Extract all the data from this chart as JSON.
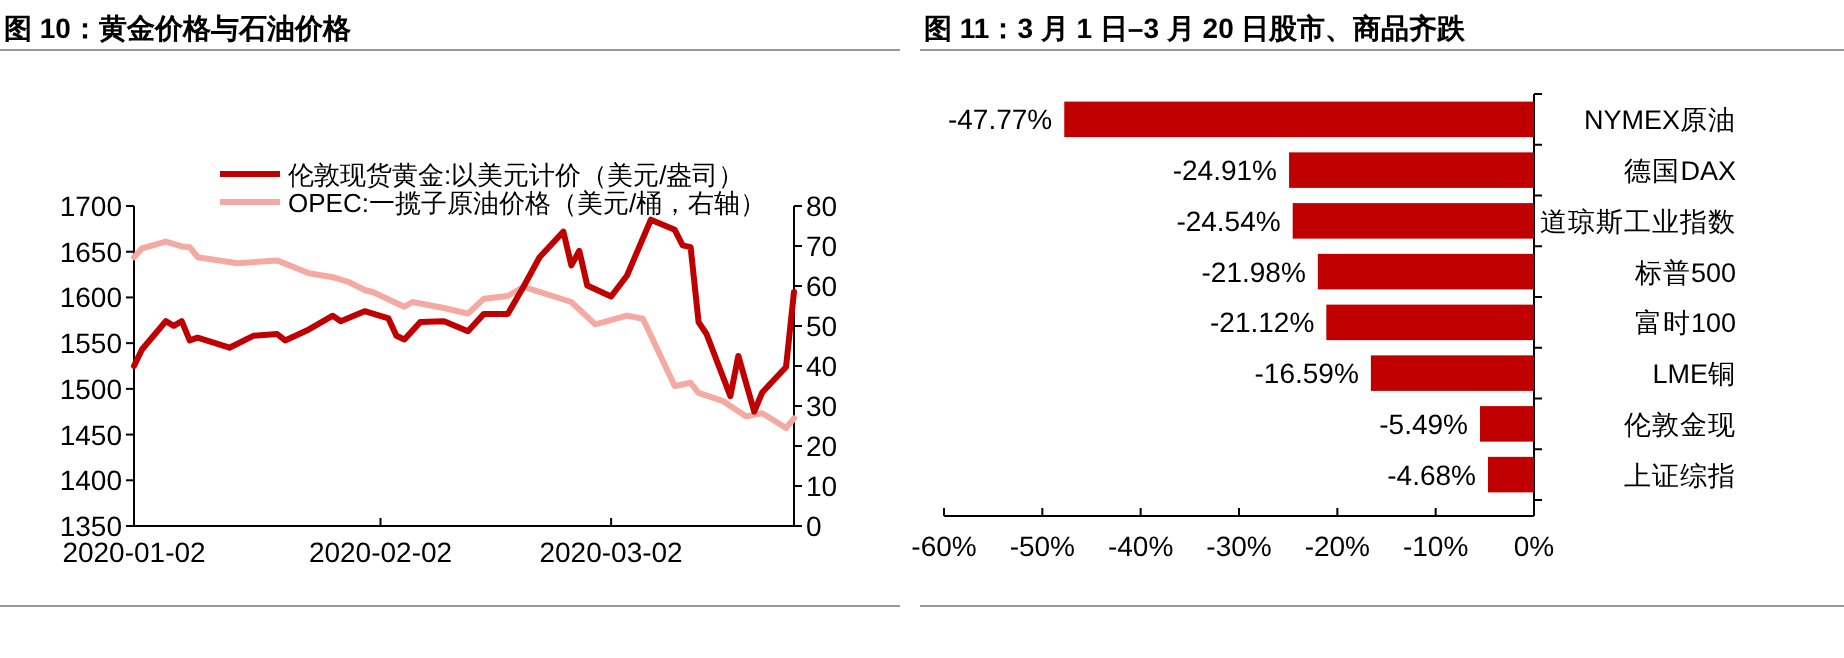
{
  "chart_data": [
    {
      "type": "line",
      "title": "图 10：黄金价格与石油价格",
      "x": [
        "2020-01-02",
        "2020-01-03",
        "2020-01-06",
        "2020-01-07",
        "2020-01-08",
        "2020-01-09",
        "2020-01-10",
        "2020-01-14",
        "2020-01-17",
        "2020-01-20",
        "2020-01-21",
        "2020-01-24",
        "2020-01-27",
        "2020-01-28",
        "2020-01-31",
        "2020-02-03",
        "2020-02-04",
        "2020-02-05",
        "2020-02-07",
        "2020-02-10",
        "2020-02-13",
        "2020-02-15",
        "2020-02-18",
        "2020-02-20",
        "2020-02-22",
        "2020-02-25",
        "2020-02-26",
        "2020-02-27",
        "2020-02-28",
        "2020-03-02",
        "2020-03-04",
        "2020-03-07",
        "2020-03-10",
        "2020-03-11",
        "2020-03-12",
        "2020-03-13",
        "2020-03-14",
        "2020-03-17",
        "2020-03-18",
        "2020-03-20",
        "2020-03-21",
        "2020-03-24",
        "2020-03-25"
      ],
      "series": [
        {
          "name": "伦敦现货黄金:以美元计价（美元/盎司）",
          "color": "#c00000",
          "values": [
            1525,
            1543,
            1574,
            1569,
            1574,
            1553,
            1556,
            1545,
            1558,
            1560,
            1553,
            1565,
            1580,
            1574,
            1585,
            1577,
            1558,
            1554,
            1573,
            1574,
            1563,
            1582,
            1582,
            1612,
            1644,
            1672,
            1635,
            1651,
            1613,
            1601,
            1624,
            1685,
            1674,
            1657,
            1655,
            1573,
            1560,
            1492,
            1536,
            1475,
            1496,
            1524,
            1606
          ]
        },
        {
          "name": "OPEC:一揽子原油价格（美元/桶，右轴）",
          "color": "#f4aaa2",
          "axis": "y2",
          "x": [
            "2020-01-02",
            "2020-01-03",
            "2020-01-06",
            "2020-01-08",
            "2020-01-09",
            "2020-01-10",
            "2020-01-15",
            "2020-01-20",
            "2020-01-24",
            "2020-01-27",
            "2020-01-29",
            "2020-01-31",
            "2020-02-01",
            "2020-02-05",
            "2020-02-06",
            "2020-02-10",
            "2020-02-13",
            "2020-02-15",
            "2020-02-18",
            "2020-02-20",
            "2020-02-26",
            "2020-02-29",
            "2020-03-04",
            "2020-03-06",
            "2020-03-10",
            "2020-03-12",
            "2020-03-13",
            "2020-03-16",
            "2020-03-19",
            "2020-03-21",
            "2020-03-24",
            "2020-03-25"
          ],
          "values": [
            67.2,
            69.4,
            71.1,
            69.9,
            69.7,
            67.2,
            65.7,
            66.4,
            63.2,
            62.2,
            61,
            59,
            58.5,
            54.8,
            56,
            54.5,
            53.1,
            56.8,
            57.5,
            59.8,
            56,
            50.4,
            52.6,
            51.8,
            35,
            35.8,
            33.3,
            31.3,
            27.4,
            28.2,
            24.5,
            26.9
          ]
        }
      ],
      "xlim": [
        "2020-01-02",
        "2020-03-25"
      ],
      "xticks": [
        {
          "value": "2020-01-02",
          "label": "2020-01-02"
        },
        {
          "value": "2020-02-02",
          "label": "2020-02-02"
        },
        {
          "value": "2020-03-02",
          "label": "2020-03-02"
        }
      ],
      "ylim": [
        1350,
        1700
      ],
      "yticks": [
        1350,
        1400,
        1450,
        1500,
        1550,
        1600,
        1650,
        1700
      ],
      "y2lim": [
        0,
        80
      ],
      "y2ticks": [
        0,
        10,
        20,
        30,
        40,
        50,
        60,
        70,
        80
      ],
      "legend": "top",
      "grid": false
    },
    {
      "type": "bar",
      "orientation": "horizontal",
      "title": "图 11：3 月 1 日–3 月 20 日股市、商品齐跌",
      "categories": [
        "NYMEX原油",
        "德国DAX",
        "道琼斯工业指数",
        "标普500",
        "富时100",
        "LME铜",
        "伦敦金现",
        "上证综指"
      ],
      "values": [
        -47.77,
        -24.91,
        -24.54,
        -21.98,
        -21.12,
        -16.59,
        -5.49,
        -4.68
      ],
      "value_labels": [
        "-47.77%",
        "-24.91%",
        "-24.54%",
        "-21.98%",
        "-21.12%",
        "-16.59%",
        "-5.49%",
        "-4.68%"
      ],
      "color": "#c00000",
      "xlim": [
        -60,
        0
      ],
      "xticks": [
        {
          "value": -60,
          "label": "-60%"
        },
        {
          "value": -50,
          "label": "-50%"
        },
        {
          "value": -40,
          "label": "-40%"
        },
        {
          "value": -30,
          "label": "-30%"
        },
        {
          "value": -20,
          "label": "-20%"
        },
        {
          "value": -10,
          "label": "-10%"
        },
        {
          "value": 0,
          "label": "0%"
        }
      ],
      "grid": false
    }
  ]
}
